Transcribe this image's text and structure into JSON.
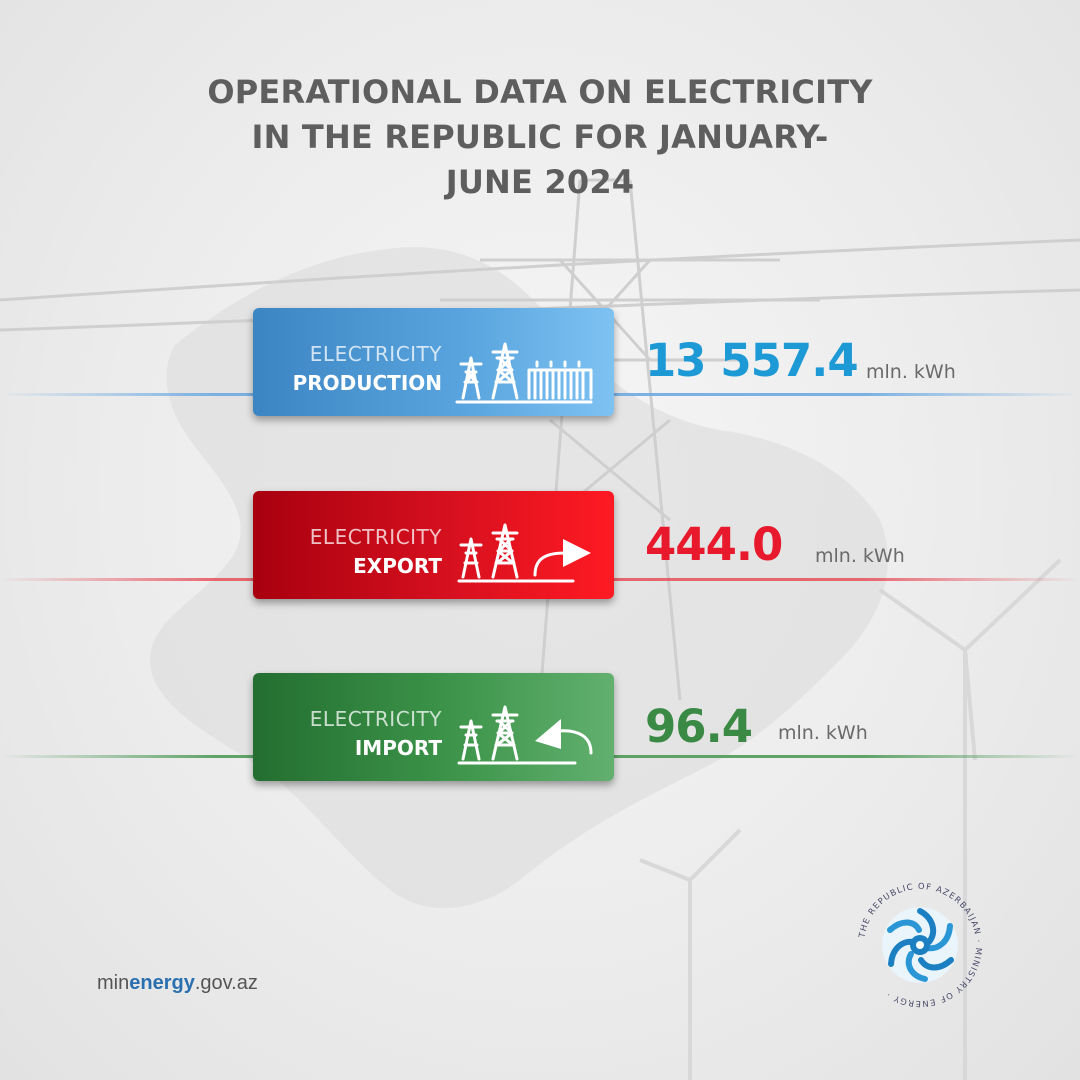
{
  "title": {
    "line1": "OPERATIONAL DATA ON ELECTRICITY",
    "line2": "IN THE REPUBLIC FOR JANUARY-",
    "line3": "JUNE 2024"
  },
  "colors": {
    "production": "#1d9ad6",
    "export": "#e8192c",
    "import": "#3a8a45",
    "title": "#5e5e5e"
  },
  "stats": {
    "production": {
      "label_light": "ELECTRICITY",
      "label_bold": "PRODUCTION",
      "icon": "power-plant-icon",
      "value": "13 557.4",
      "unit": "mln. kWh"
    },
    "export": {
      "label_light": "ELECTRICITY",
      "label_bold": "EXPORT",
      "icon": "export-arrow-icon",
      "value": "444.0",
      "unit": "mln. kWh"
    },
    "import": {
      "label_light": "ELECTRICITY",
      "label_bold": "IMPORT",
      "icon": "import-arrow-icon",
      "value": "96.4",
      "unit": "mln. kWh"
    }
  },
  "footer": {
    "url_prefix": "min",
    "url_bold": "energy",
    "url_suffix": ".gov.az"
  },
  "emblem": {
    "text": "THE REPUBLIC OF AZERBAIJAN MINISTRY OF ENERGY",
    "icon": "ministry-emblem-icon"
  }
}
